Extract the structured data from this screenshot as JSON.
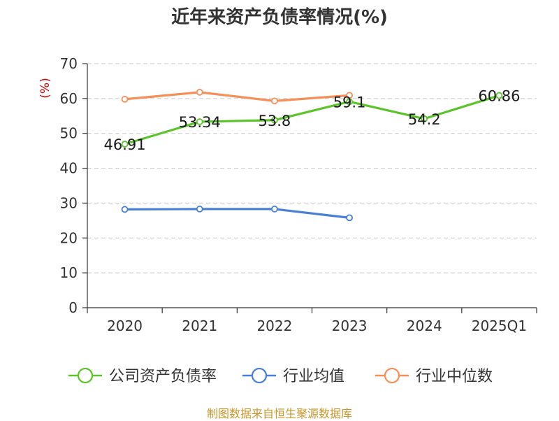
{
  "chart_data": {
    "type": "line",
    "title": "近年来资产负债率情况(%)",
    "ylabel": "(%)",
    "xlabel": "",
    "ylim": [
      0,
      70
    ],
    "yticks": [
      0,
      10,
      20,
      30,
      40,
      50,
      60,
      70
    ],
    "categories": [
      "2020",
      "2021",
      "2022",
      "2023",
      "2024",
      "2025Q1"
    ],
    "grid": true,
    "legend_position": "bottom",
    "series": [
      {
        "name": "公司资产负债率",
        "color": "#5cc42b",
        "values": [
          46.91,
          53.34,
          53.8,
          59.1,
          54.2,
          60.86
        ],
        "labels": [
          "46.91",
          "53.34",
          "53.8",
          "59.1",
          "54.2",
          "60.86"
        ]
      },
      {
        "name": "行业均值",
        "color": "#4a7fd6",
        "values": [
          28.2,
          28.3,
          28.3,
          25.8,
          null,
          null
        ]
      },
      {
        "name": "行业中位数",
        "color": "#f5905a",
        "values": [
          59.8,
          61.8,
          59.3,
          60.9,
          null,
          null
        ]
      }
    ]
  },
  "source": "制图数据来自恒生聚源数据库"
}
